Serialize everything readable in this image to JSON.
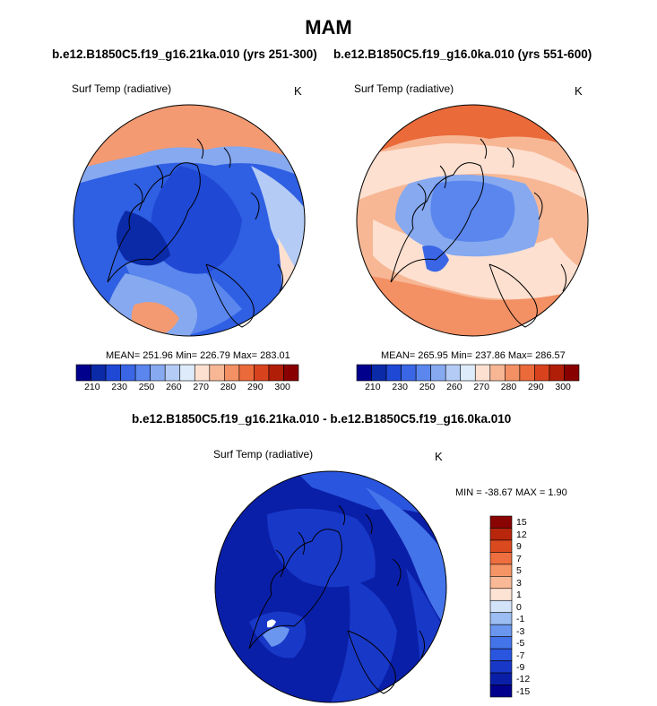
{
  "title": "MAM",
  "panels": [
    {
      "header": "b.e12.B1850C5.f19_g16.21ka.010 (yrs 251-300)",
      "label": "Surf Temp (radiative)",
      "unit": "K",
      "stats": "MEAN= 251.96  Min= 226.79  Max= 283.01"
    },
    {
      "header": "b.e12.B1850C5.f19_g16.0ka.010 (yrs 551-600)",
      "label": "Surf Temp (radiative)",
      "unit": "K",
      "stats": "MEAN= 265.95  Min= 237.86  Max= 286.57"
    }
  ],
  "colorbar": {
    "colors": [
      "#00008c",
      "#0a2aa8",
      "#1f48d4",
      "#3a66e6",
      "#5a86ee",
      "#86a9f0",
      "#b4ccf5",
      "#deebfb",
      "#fde0d0",
      "#f7b795",
      "#f39064",
      "#ea6a3a",
      "#d8431e",
      "#b01e08",
      "#880000"
    ],
    "ticks": [
      "210",
      "230",
      "250",
      "260",
      "270",
      "280",
      "290",
      "300"
    ]
  },
  "diff": {
    "header": "b.e12.B1850C5.f19_g16.21ka.010 - b.e12.B1850C5.f19_g16.0ka.010",
    "label": "Surf Temp (radiative)",
    "unit": "K",
    "minmax": "MIN = -38.67 MAX =   1.90",
    "colors": [
      "#00008c",
      "#0a1fa8",
      "#1838c8",
      "#2a55de",
      "#4474ea",
      "#6a96ef",
      "#9cbdf3",
      "#d3e3fa",
      "#fde3d4",
      "#f9b996",
      "#f59465",
      "#ee6e3f",
      "#db4a1f",
      "#b8260c",
      "#8a0404"
    ],
    "ticks": [
      "15",
      "12",
      "9",
      "7",
      "5",
      "3",
      "1",
      "0",
      "-1",
      "-3",
      "-5",
      "-7",
      "-9",
      "-12",
      "-15"
    ]
  }
}
